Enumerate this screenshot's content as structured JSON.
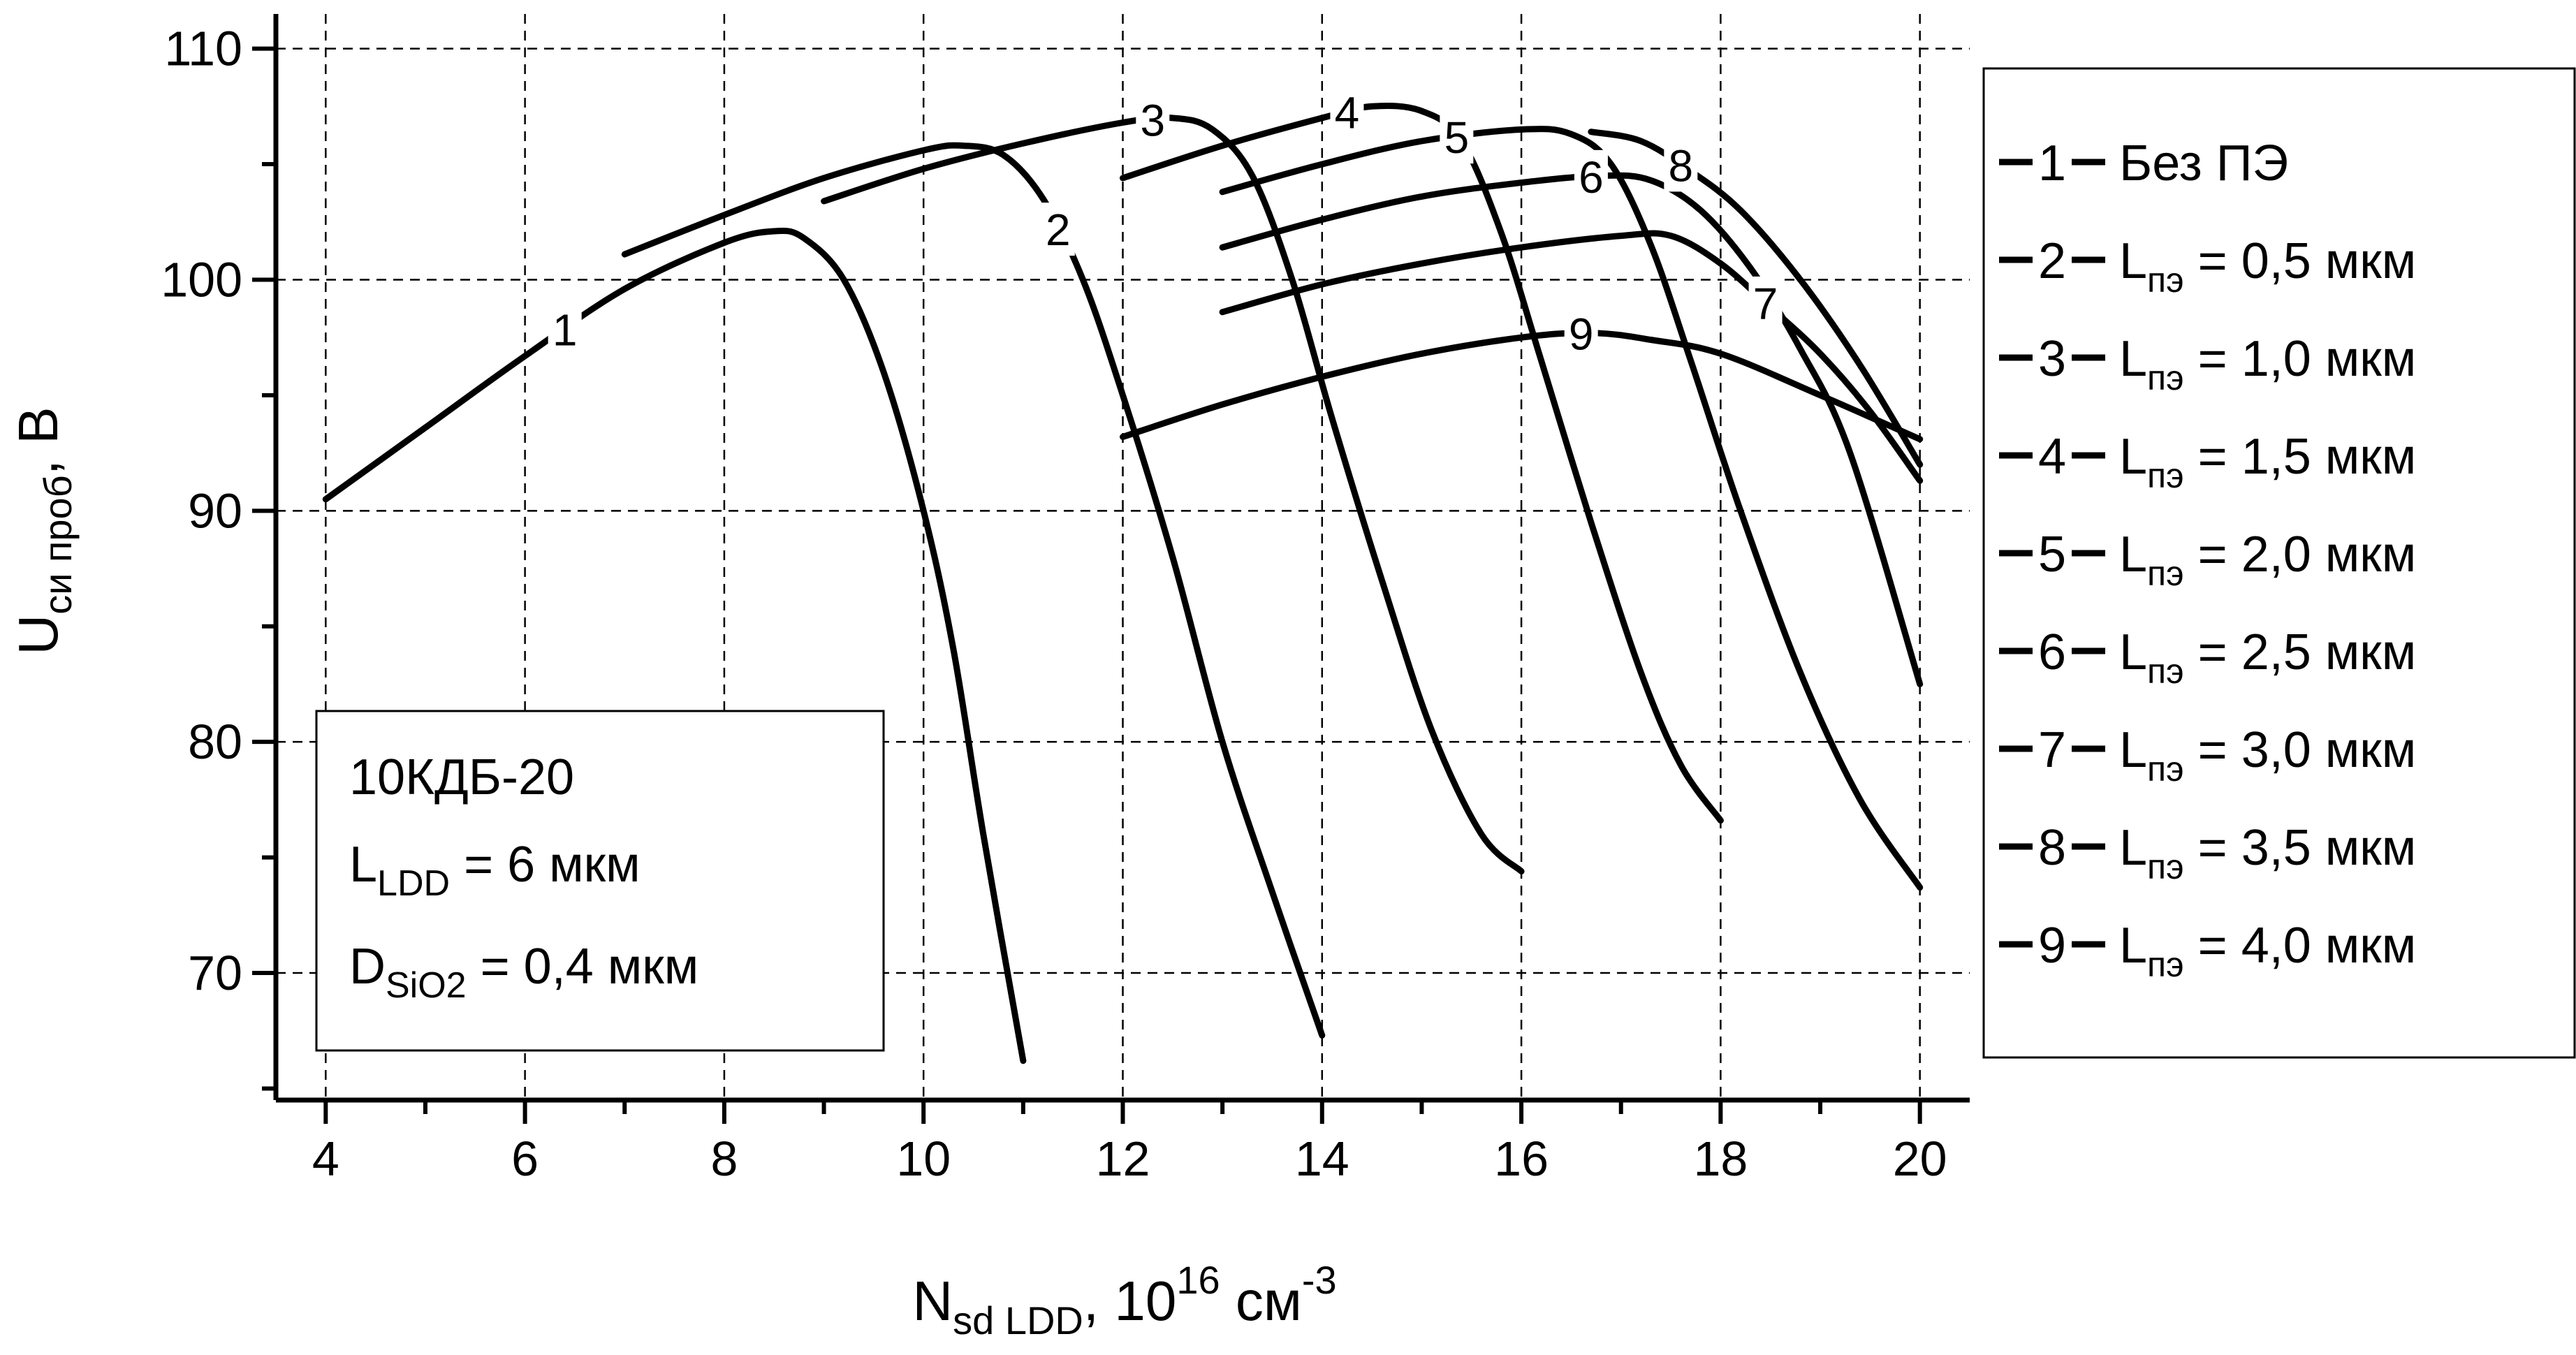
{
  "chart_data": {
    "type": "line",
    "xlabel": {
      "main": "N",
      "sub": "sd LDD",
      "rest": ", 10",
      "sup1": "16",
      "unit": " см",
      "sup2": "-3"
    },
    "ylabel": {
      "main": "U",
      "sub": "си проб",
      "rest": ", В"
    },
    "xlim": [
      3.5,
      20.5
    ],
    "ylim": [
      64.5,
      111.5
    ],
    "xticks": [
      4,
      6,
      8,
      10,
      12,
      14,
      16,
      18,
      20
    ],
    "yticks": [
      70,
      80,
      90,
      100,
      110
    ],
    "grid": true,
    "legend_position": "right",
    "series": [
      {
        "id": "1",
        "name_prefix": "Без ПЭ",
        "name_sub": "",
        "name_suffix": "",
        "points": [
          [
            4,
            90.5
          ],
          [
            5,
            93.6
          ],
          [
            6,
            96.7
          ],
          [
            7,
            99.6
          ],
          [
            8,
            101.6
          ],
          [
            8.5,
            102.1
          ],
          [
            8.8,
            101.8
          ],
          [
            9.2,
            100
          ],
          [
            9.6,
            96
          ],
          [
            10,
            90
          ],
          [
            10.3,
            84
          ],
          [
            10.6,
            76
          ],
          [
            11,
            66.2
          ]
        ],
        "label_x": 6.4
      },
      {
        "id": "2",
        "name_prefix": "L",
        "name_sub": "пэ",
        "name_suffix": " = 0,5 мкм",
        "points": [
          [
            7,
            101.1
          ],
          [
            8,
            102.8
          ],
          [
            9,
            104.4
          ],
          [
            10,
            105.6
          ],
          [
            10.4,
            105.8
          ],
          [
            10.8,
            105.4
          ],
          [
            11.2,
            103.5
          ],
          [
            11.6,
            100
          ],
          [
            12,
            95
          ],
          [
            12.5,
            88
          ],
          [
            13,
            80
          ],
          [
            13.5,
            73.5
          ],
          [
            14,
            67.3
          ]
        ],
        "label_x": 11.35
      },
      {
        "id": "3",
        "name_prefix": "L",
        "name_sub": "пэ",
        "name_suffix": " = 1,0 мкм",
        "points": [
          [
            9,
            103.4
          ],
          [
            10,
            104.8
          ],
          [
            11,
            105.9
          ],
          [
            12,
            106.8
          ],
          [
            12.5,
            107
          ],
          [
            12.9,
            106.5
          ],
          [
            13.3,
            104.5
          ],
          [
            13.7,
            100
          ],
          [
            14.1,
            94
          ],
          [
            14.6,
            87
          ],
          [
            15.1,
            80.5
          ],
          [
            15.6,
            76
          ],
          [
            16,
            74.4
          ]
        ],
        "label_x": 12.3
      },
      {
        "id": "4",
        "name_prefix": "L",
        "name_sub": "пэ",
        "name_suffix": " = 1,5 мкм",
        "points": [
          [
            12,
            104.4
          ],
          [
            13,
            105.8
          ],
          [
            14,
            107
          ],
          [
            14.5,
            107.5
          ],
          [
            15,
            107.3
          ],
          [
            15.4,
            106
          ],
          [
            15.8,
            102
          ],
          [
            16.2,
            96.5
          ],
          [
            16.7,
            89.5
          ],
          [
            17.2,
            83
          ],
          [
            17.6,
            79
          ],
          [
            18,
            76.6
          ]
        ],
        "label_x": 14.25
      },
      {
        "id": "5",
        "name_prefix": "L",
        "name_sub": "пэ",
        "name_suffix": " = 2,0 мкм",
        "points": [
          [
            13,
            103.8
          ],
          [
            14,
            105
          ],
          [
            15,
            106
          ],
          [
            16,
            106.5
          ],
          [
            16.5,
            106.3
          ],
          [
            16.9,
            105
          ],
          [
            17.3,
            101.5
          ],
          [
            17.7,
            96.5
          ],
          [
            18.2,
            90
          ],
          [
            18.8,
            83
          ],
          [
            19.4,
            77.5
          ],
          [
            20,
            73.7
          ]
        ],
        "label_x": 15.35
      },
      {
        "id": "6",
        "name_prefix": "L",
        "name_sub": "пэ",
        "name_suffix": " = 2,5 мкм",
        "points": [
          [
            13,
            101.4
          ],
          [
            14,
            102.6
          ],
          [
            15,
            103.6
          ],
          [
            16,
            104.2
          ],
          [
            16.8,
            104.5
          ],
          [
            17.3,
            104.3
          ],
          [
            17.8,
            103
          ],
          [
            18.3,
            100.5
          ],
          [
            18.8,
            97
          ],
          [
            19.3,
            92.5
          ],
          [
            20,
            82.5
          ]
        ],
        "label_x": 16.7
      },
      {
        "id": "7",
        "name_prefix": "L",
        "name_sub": "пэ",
        "name_suffix": " = 3,0 мкм",
        "points": [
          [
            13,
            98.6
          ],
          [
            14,
            99.8
          ],
          [
            15,
            100.7
          ],
          [
            16,
            101.4
          ],
          [
            17,
            101.9
          ],
          [
            17.5,
            101.9
          ],
          [
            18,
            100.7
          ],
          [
            18.5,
            98.8
          ],
          [
            19,
            96.8
          ],
          [
            19.5,
            94.3
          ],
          [
            20,
            91.3
          ]
        ],
        "label_x": 18.45
      },
      {
        "id": "8",
        "name_prefix": "L",
        "name_sub": "пэ",
        "name_suffix": " = 3,5 мкм",
        "points": [
          [
            16.7,
            106.4
          ],
          [
            17.2,
            106
          ],
          [
            17.7,
            104.7
          ],
          [
            18.2,
            103
          ],
          [
            18.8,
            100
          ],
          [
            19.4,
            96.3
          ],
          [
            20,
            92
          ]
        ],
        "label_x": 17.6
      },
      {
        "id": "9",
        "name_prefix": "L",
        "name_sub": "пэ",
        "name_suffix": " = 4,0 мкм",
        "points": [
          [
            12,
            93.2
          ],
          [
            13,
            94.6
          ],
          [
            14,
            95.8
          ],
          [
            15,
            96.8
          ],
          [
            16,
            97.5
          ],
          [
            16.7,
            97.7
          ],
          [
            17.3,
            97.4
          ],
          [
            18,
            96.8
          ],
          [
            19,
            95
          ],
          [
            20,
            93.1
          ]
        ],
        "label_x": 16.6
      }
    ],
    "annotation": {
      "line1": "10КДБ-20",
      "line2_main": "L",
      "line2_sub": "LDD",
      "line2_rest": " = 6 мкм",
      "line3_main": "D",
      "line3_sub": "SiO2",
      "line3_rest": " = 0,4 мкм"
    }
  },
  "style": {
    "curve_color": "#000000",
    "background": "#ffffff"
  }
}
